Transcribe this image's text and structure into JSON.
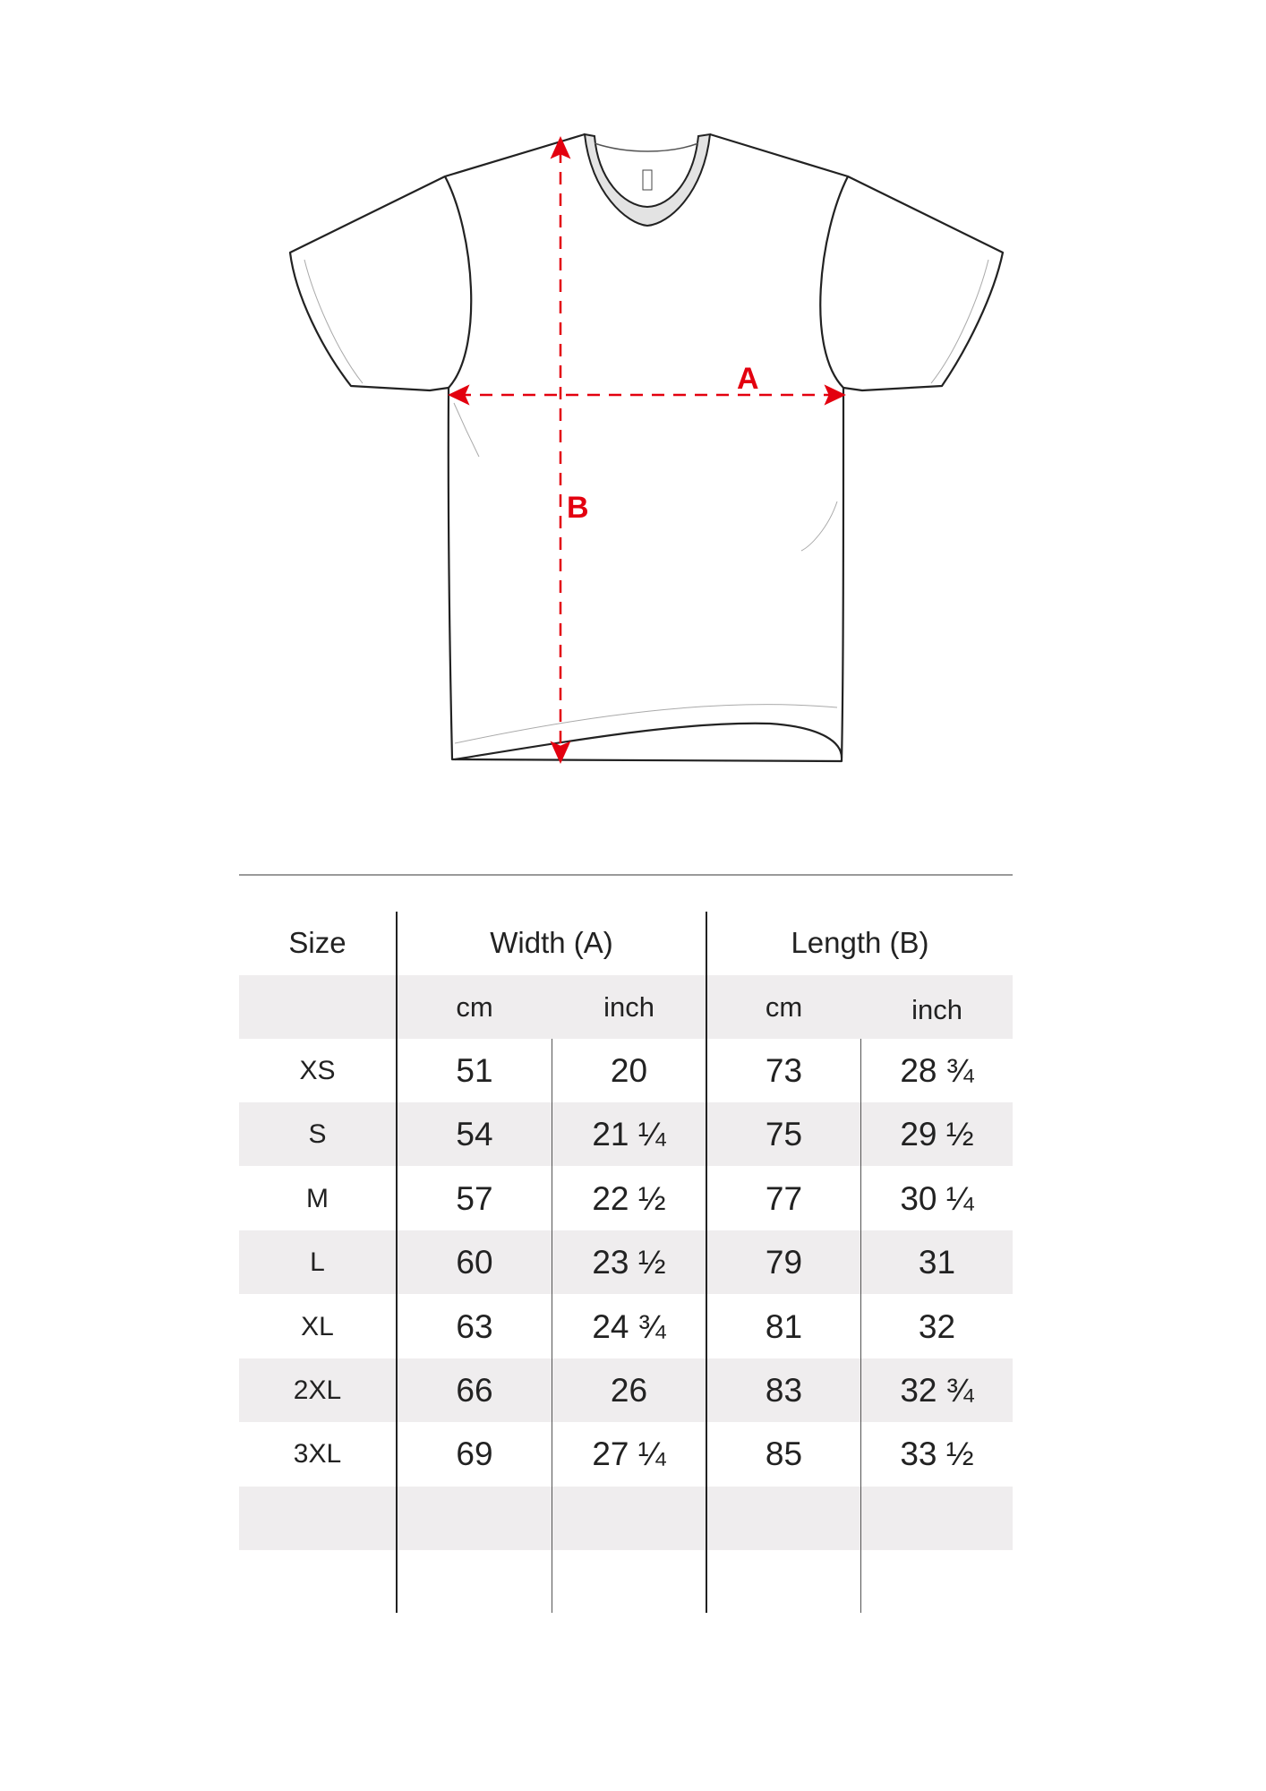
{
  "diagram": {
    "label_a": "A",
    "label_b": "B",
    "arrow_color": "#e3000f"
  },
  "table": {
    "headers": {
      "size": "Size",
      "width": "Width (A)",
      "length": "Length (B)"
    },
    "units": {
      "width_cm": "cm",
      "width_inch": "inch",
      "length_cm": "cm",
      "length_inch": "inch"
    },
    "rows": [
      {
        "size": "XS",
        "width_cm": "51",
        "width_inch": "20",
        "length_cm": "73",
        "length_inch": "28 ¾"
      },
      {
        "size": "S",
        "width_cm": "54",
        "width_inch": "21 ¼",
        "length_cm": "75",
        "length_inch": "29 ½"
      },
      {
        "size": "M",
        "width_cm": "57",
        "width_inch": "22 ½",
        "length_cm": "77",
        "length_inch": "30 ¼"
      },
      {
        "size": "L",
        "width_cm": "60",
        "width_inch": "23 ½",
        "length_cm": "79",
        "length_inch": "31"
      },
      {
        "size": "XL",
        "width_cm": "63",
        "width_inch": "24 ¾",
        "length_cm": "81",
        "length_inch": "32"
      },
      {
        "size": "2XL",
        "width_cm": "66",
        "width_inch": "26",
        "length_cm": "83",
        "length_inch": "32 ¾"
      },
      {
        "size": "3XL",
        "width_cm": "69",
        "width_inch": "27 ¼",
        "length_cm": "85",
        "length_inch": "33 ½"
      }
    ],
    "stripe_color": "#efedee"
  }
}
